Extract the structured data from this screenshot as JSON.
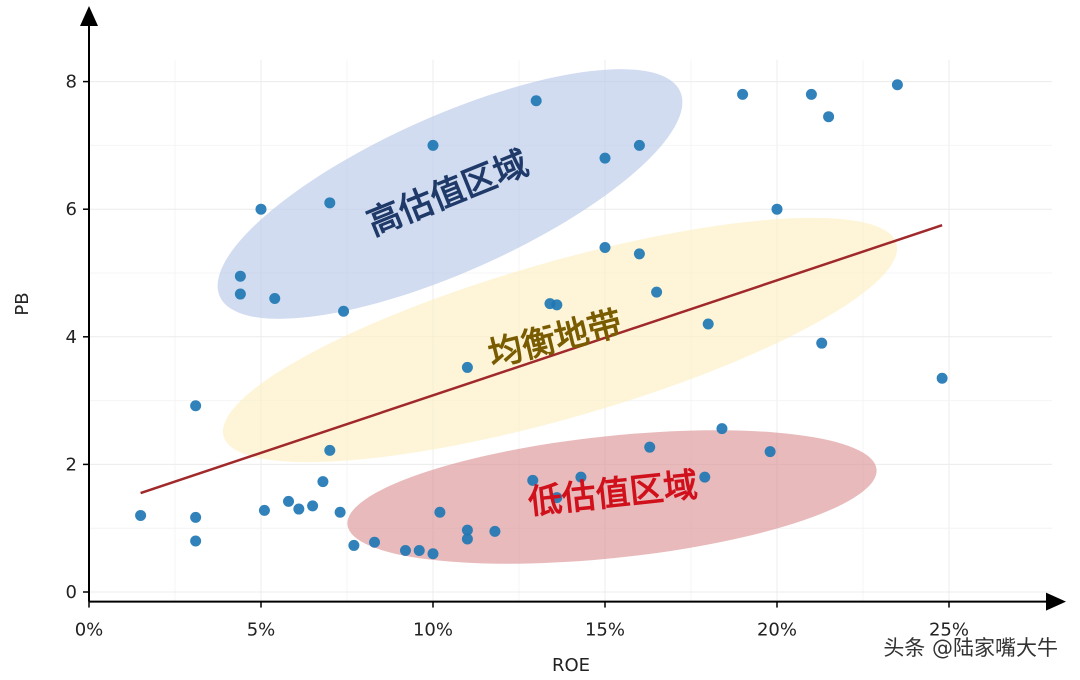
{
  "chart_data": {
    "type": "scatter",
    "title": "",
    "xlabel": "ROE",
    "ylabel": "PB",
    "xlim": [
      0,
      27.5
    ],
    "ylim": [
      -0.15,
      8.5
    ],
    "grid": true,
    "x_ticks": [
      {
        "value": 0,
        "label": "0%"
      },
      {
        "value": 5,
        "label": "5%"
      },
      {
        "value": 10,
        "label": "10%"
      },
      {
        "value": 15,
        "label": "15%"
      },
      {
        "value": 20,
        "label": "20%"
      },
      {
        "value": 25,
        "label": "25%"
      }
    ],
    "y_ticks": [
      {
        "value": 0,
        "label": "0"
      },
      {
        "value": 2,
        "label": "2"
      },
      {
        "value": 4,
        "label": "4"
      },
      {
        "value": 6,
        "label": "6"
      },
      {
        "value": 8,
        "label": "8"
      }
    ],
    "point_color": "#1f77b4",
    "trend_line": {
      "color": "#a0292b",
      "from": {
        "x": 1.5,
        "y": 1.55
      },
      "to": {
        "x": 24.8,
        "y": 5.75
      }
    },
    "points": [
      {
        "x": 1.5,
        "y": 1.2
      },
      {
        "x": 3.1,
        "y": 2.92
      },
      {
        "x": 3.1,
        "y": 1.17
      },
      {
        "x": 3.1,
        "y": 0.8
      },
      {
        "x": 4.4,
        "y": 4.95
      },
      {
        "x": 4.4,
        "y": 4.67
      },
      {
        "x": 5.0,
        "y": 6.0
      },
      {
        "x": 5.1,
        "y": 1.28
      },
      {
        "x": 5.4,
        "y": 4.6
      },
      {
        "x": 5.8,
        "y": 1.42
      },
      {
        "x": 6.1,
        "y": 1.3
      },
      {
        "x": 6.5,
        "y": 1.35
      },
      {
        "x": 6.8,
        "y": 1.73
      },
      {
        "x": 7.0,
        "y": 6.1
      },
      {
        "x": 7.0,
        "y": 2.22
      },
      {
        "x": 7.3,
        "y": 1.25
      },
      {
        "x": 7.4,
        "y": 4.4
      },
      {
        "x": 7.7,
        "y": 0.73
      },
      {
        "x": 8.3,
        "y": 0.78
      },
      {
        "x": 9.2,
        "y": 0.65
      },
      {
        "x": 9.6,
        "y": 0.65
      },
      {
        "x": 10.0,
        "y": 7.0
      },
      {
        "x": 10.0,
        "y": 0.6
      },
      {
        "x": 10.2,
        "y": 1.25
      },
      {
        "x": 11.0,
        "y": 3.52
      },
      {
        "x": 11.0,
        "y": 0.97
      },
      {
        "x": 11.0,
        "y": 0.83
      },
      {
        "x": 11.8,
        "y": 0.95
      },
      {
        "x": 12.9,
        "y": 1.75
      },
      {
        "x": 13.0,
        "y": 7.7
      },
      {
        "x": 13.4,
        "y": 4.52
      },
      {
        "x": 13.6,
        "y": 4.5
      },
      {
        "x": 13.6,
        "y": 1.48
      },
      {
        "x": 14.3,
        "y": 1.8
      },
      {
        "x": 15.0,
        "y": 6.8
      },
      {
        "x": 15.0,
        "y": 5.4
      },
      {
        "x": 16.0,
        "y": 7.0
      },
      {
        "x": 16.0,
        "y": 5.3
      },
      {
        "x": 16.3,
        "y": 2.27
      },
      {
        "x": 16.5,
        "y": 4.7
      },
      {
        "x": 17.9,
        "y": 1.8
      },
      {
        "x": 18.0,
        "y": 4.2
      },
      {
        "x": 18.4,
        "y": 2.56
      },
      {
        "x": 19.0,
        "y": 7.8
      },
      {
        "x": 19.8,
        "y": 2.2
      },
      {
        "x": 20.0,
        "y": 6.0
      },
      {
        "x": 21.0,
        "y": 7.8
      },
      {
        "x": 21.3,
        "y": 3.9
      },
      {
        "x": 21.5,
        "y": 7.45
      },
      {
        "x": 23.5,
        "y": 7.95
      },
      {
        "x": 24.8,
        "y": 3.35
      }
    ],
    "regions": [
      {
        "label": "高估值区域",
        "fill": "#b9c9ea",
        "text_color": "#1f3a68"
      },
      {
        "label": "均衡地带",
        "fill": "#fdf0c4",
        "text_color": "#7a5c00"
      },
      {
        "label": "低估值区域",
        "fill": "#dc9596",
        "text_color": "#d0101b"
      }
    ]
  },
  "watermark": "头条 @陆家嘴大牛"
}
